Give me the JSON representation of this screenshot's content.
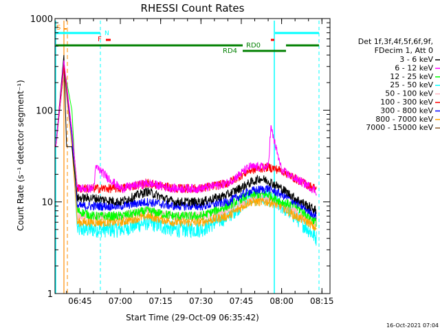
{
  "chart_data": {
    "type": "line",
    "title": "RHESSI Count Rates",
    "xlabel": "Start Time (29-Oct-09 06:35:42)",
    "ylabel": "Count Rate (s⁻¹ detector segment⁻¹)",
    "y_scale": "log",
    "ylim": [
      1,
      1000
    ],
    "xlim": [
      "06:35:42",
      "08:18:00"
    ],
    "x_ticks": [
      "06:45",
      "07:00",
      "07:15",
      "07:30",
      "07:45",
      "08:00",
      "08:15"
    ],
    "y_ticks": [
      "1",
      "10",
      "100",
      "1000"
    ],
    "legend_header": [
      "Det 1f,3f,4f,5f,6f,9f,",
      "FDecim 1, Att 0"
    ],
    "legend_position": "right",
    "series": [
      {
        "name": "3 - 6 keV",
        "color": "#000000",
        "x": [
          "06:36",
          "06:39",
          "06:40",
          "06:42",
          "06:44",
          "06:50",
          "07:00",
          "07:10",
          "07:20",
          "07:30",
          "07:40",
          "07:48",
          "07:52",
          "07:55",
          "08:00",
          "08:05",
          "08:10",
          "08:13"
        ],
        "y": [
          40,
          400,
          40,
          40,
          11,
          11,
          10,
          13,
          10,
          10,
          12,
          16,
          18,
          17,
          14,
          11,
          9,
          8
        ]
      },
      {
        "name": "6 - 12 keV",
        "color": "#ff00ff",
        "x": [
          "06:36",
          "06:39",
          "06:42",
          "06:44",
          "06:50",
          "06:51",
          "07:00",
          "07:10",
          "07:20",
          "07:30",
          "07:40",
          "07:48",
          "07:55",
          "07:56",
          "08:00",
          "08:05",
          "08:10",
          "08:13"
        ],
        "y": [
          40,
          350,
          60,
          14,
          14,
          24,
          14,
          16,
          14,
          14,
          16,
          24,
          24,
          65,
          22,
          18,
          15,
          13
        ]
      },
      {
        "name": "12 - 25 keV",
        "color": "#00ff00",
        "x": [
          "06:36",
          "06:39",
          "06:42",
          "06:44",
          "06:50",
          "07:00",
          "07:10",
          "07:20",
          "07:30",
          "07:40",
          "07:48",
          "07:55",
          "08:00",
          "08:05",
          "08:10",
          "08:13"
        ],
        "y": [
          40,
          300,
          100,
          8,
          7,
          7,
          8,
          7,
          7,
          9,
          12,
          12,
          10,
          9,
          7,
          6
        ]
      },
      {
        "name": "25 - 50 keV",
        "color": "#00ffff",
        "x": [
          "06:36",
          "06:39",
          "06:42",
          "06:44",
          "06:50",
          "07:00",
          "07:10",
          "07:20",
          "07:30",
          "07:40",
          "07:48",
          "07:55",
          "08:00",
          "08:05",
          "08:10",
          "08:13"
        ],
        "y": [
          40,
          250,
          50,
          5,
          5,
          5,
          6,
          5,
          5,
          7,
          11,
          11,
          9,
          7,
          5,
          4
        ]
      },
      {
        "name": "50 - 100 keV",
        "color": "#ffb6c1",
        "x": [
          "06:36",
          "06:39",
          "06:42",
          "06:44",
          "06:50",
          "07:00",
          "07:10",
          "07:20",
          "07:30",
          "07:40",
          "07:48",
          "07:55",
          "08:00",
          "08:05",
          "08:10",
          "08:13"
        ],
        "y": [
          40,
          250,
          40,
          7,
          7,
          7,
          8,
          7,
          7,
          8,
          11,
          11,
          9,
          8,
          6,
          6
        ]
      },
      {
        "name": "100 - 300 keV",
        "color": "#ff0000",
        "x": [
          "06:36",
          "06:39",
          "06:42",
          "06:44",
          "06:50",
          "07:00",
          "07:10",
          "07:20",
          "07:30",
          "07:40",
          "07:48",
          "07:55",
          "08:00",
          "08:05",
          "08:10",
          "08:13"
        ],
        "y": [
          40,
          300,
          60,
          14,
          14,
          14,
          16,
          14,
          14,
          16,
          22,
          24,
          22,
          18,
          15,
          14
        ]
      },
      {
        "name": "300 - 800 keV",
        "color": "#0000ff",
        "x": [
          "06:36",
          "06:39",
          "06:42",
          "06:44",
          "06:50",
          "07:00",
          "07:10",
          "07:20",
          "07:30",
          "07:40",
          "07:48",
          "07:55",
          "08:00",
          "08:05",
          "08:10",
          "08:13"
        ],
        "y": [
          40,
          300,
          50,
          9,
          9,
          9,
          10,
          9,
          9,
          10,
          13,
          14,
          12,
          10,
          8,
          7
        ]
      },
      {
        "name": "800 - 7000 keV",
        "color": "#ffa500",
        "x": [
          "06:36",
          "06:39",
          "06:42",
          "06:44",
          "06:50",
          "07:00",
          "07:10",
          "07:20",
          "07:30",
          "07:40",
          "07:48",
          "07:55",
          "08:00",
          "08:05",
          "08:10",
          "08:13"
        ],
        "y": [
          40,
          300,
          40,
          6,
          6,
          6,
          7,
          6,
          6,
          7,
          10,
          10,
          9,
          7,
          6,
          5
        ]
      },
      {
        "name": "7000 - 15000 keV",
        "color": "#8b5a2b",
        "x": [],
        "y": []
      }
    ],
    "flag_labels": [
      {
        "text": "S",
        "color": "#ff8c00"
      },
      {
        "text": "N",
        "color": "#00ffff"
      },
      {
        "text": "F",
        "color": "#ff0000"
      },
      {
        "text": "RD0",
        "color": "#008000"
      },
      {
        "text": "RD4",
        "color": "#008000"
      }
    ]
  },
  "footer": {
    "timestamp": "16-Oct-2021 07:04"
  }
}
